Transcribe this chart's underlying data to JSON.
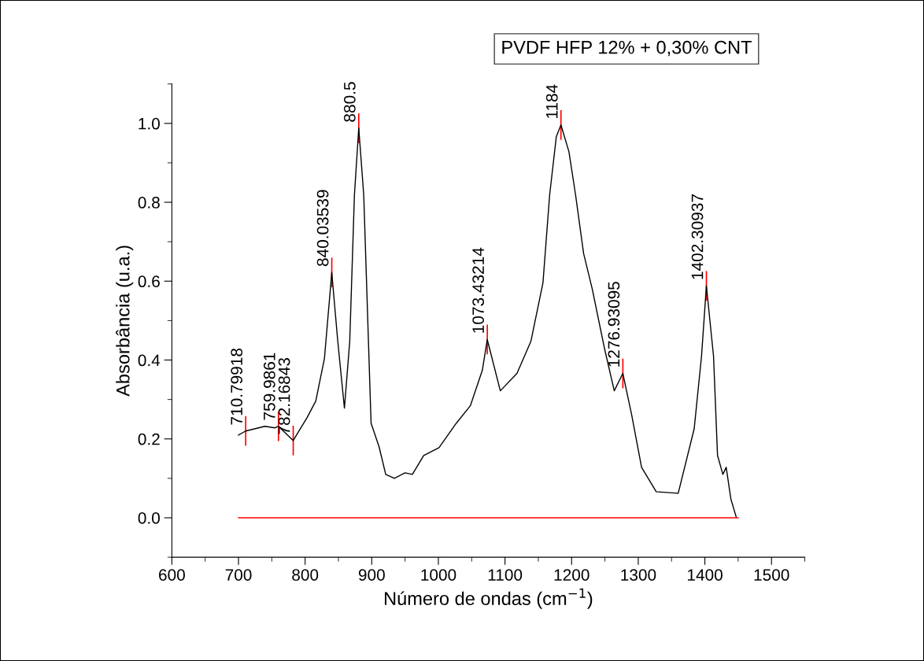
{
  "chart_data": {
    "type": "line",
    "title": "PVDF HFP 12% + 0,30% CNT",
    "xlabel": "Número de ondas (cm$^{−1}$)",
    "ylabel": "Absorbância (u.a.)",
    "series": [
      {
        "color": "#000000",
        "x": [
          700,
          710.8,
          739.5,
          755,
          760,
          782,
          803,
          816,
          829,
          840,
          849,
          859,
          867,
          874,
          880.5,
          888,
          899,
          911,
          921,
          934,
          950,
          961,
          978,
          1001,
          1027,
          1048,
          1066,
          1073.4,
          1093,
          1118,
          1139,
          1157,
          1167,
          1177,
          1184,
          1196,
          1206,
          1218,
          1231,
          1249,
          1264,
          1276.9,
          1290,
          1305,
          1327,
          1360,
          1384,
          1395,
          1402.3,
          1413,
          1419,
          1427,
          1432,
          1439,
          1447
        ],
        "values": [
          0.21,
          0.22,
          0.232,
          0.228,
          0.232,
          0.196,
          0.254,
          0.296,
          0.404,
          0.622,
          0.448,
          0.278,
          0.448,
          0.818,
          0.988,
          0.818,
          0.24,
          0.18,
          0.11,
          0.1,
          0.114,
          0.11,
          0.158,
          0.178,
          0.24,
          0.284,
          0.374,
          0.452,
          0.322,
          0.366,
          0.448,
          0.596,
          0.818,
          0.966,
          0.996,
          0.928,
          0.818,
          0.67,
          0.58,
          0.432,
          0.322,
          0.366,
          0.262,
          0.128,
          0.066,
          0.062,
          0.226,
          0.41,
          0.588,
          0.41,
          0.158,
          0.11,
          0.128,
          0.048,
          0.002
        ]
      },
      {
        "color": "#ff0000",
        "x": [
          700,
          1450
        ],
        "values": [
          0,
          0
        ]
      }
    ],
    "annotations": [
      {
        "text": "710.79918",
        "x": 710.8,
        "y": 0.22
      },
      {
        "text": "759.9861",
        "x": 759.99,
        "y": 0.232
      },
      {
        "text": "782.16843",
        "x": 782.17,
        "y": 0.196
      },
      {
        "text": "840.03539",
        "x": 840.04,
        "y": 0.622
      },
      {
        "text": "880.5",
        "x": 880.5,
        "y": 0.988
      },
      {
        "text": "1073.43214",
        "x": 1073.43,
        "y": 0.452
      },
      {
        "text": "1184",
        "x": 1184,
        "y": 0.996
      },
      {
        "text": "1276.93095",
        "x": 1276.93,
        "y": 0.366
      },
      {
        "text": "1402.30937",
        "x": 1402.31,
        "y": 0.588
      }
    ],
    "xlim": [
      600,
      1550
    ],
    "ylim": [
      -0.1,
      1.1
    ],
    "xticks": [
      600,
      700,
      800,
      900,
      1000,
      1100,
      1200,
      1300,
      1400,
      1500
    ],
    "yticks": [
      {
        "value": 0.0,
        "label": "0.0"
      },
      {
        "value": 0.2,
        "label": "0.2"
      },
      {
        "value": 0.4,
        "label": "0.4"
      },
      {
        "value": 0.6,
        "label": "0.6"
      },
      {
        "value": 0.8,
        "label": "0.8"
      },
      {
        "value": 1.0,
        "label": "1.0"
      }
    ],
    "grid": false,
    "legend": false,
    "marker": "none",
    "line_style": "solid"
  }
}
